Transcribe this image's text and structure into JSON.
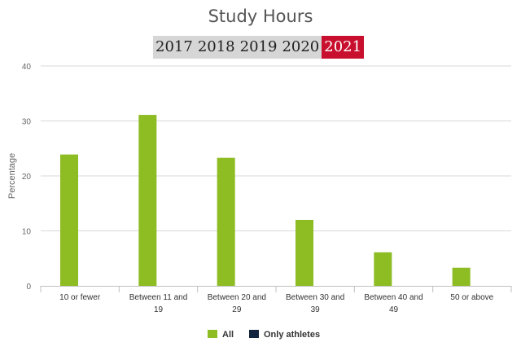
{
  "page": {
    "year_tabs": [
      {
        "label": "2017",
        "active": false
      },
      {
        "label": "2018",
        "active": false
      },
      {
        "label": "2019",
        "active": false
      },
      {
        "label": "2020",
        "active": false
      },
      {
        "label": "2021",
        "active": true
      }
    ]
  },
  "colors": {
    "all": "#8dbc23",
    "only_athletes": "#13243e",
    "active_tab": "#c8102e",
    "tab_bar": "#d6d6d6"
  },
  "chart_data": {
    "type": "bar",
    "title": "Study Hours",
    "ylabel": "Percentage",
    "xlabel": "",
    "ylim": [
      0,
      40
    ],
    "yticks": [
      0,
      10,
      20,
      30,
      40
    ],
    "grid": true,
    "legend_position": "bottom-center",
    "categories": [
      [
        "10 or fewer"
      ],
      [
        "Between 11 and",
        "19"
      ],
      [
        "Between 20 and",
        "29"
      ],
      [
        "Between 30 and",
        "39"
      ],
      [
        "Between 40 and",
        "49"
      ],
      [
        "50 or above"
      ]
    ],
    "series": [
      {
        "name": "All",
        "values": [
          23.9,
          31.1,
          23.3,
          12.0,
          6.1,
          3.3
        ]
      },
      {
        "name": "Only athletes",
        "values": [
          null,
          null,
          null,
          null,
          null,
          null
        ]
      }
    ]
  }
}
